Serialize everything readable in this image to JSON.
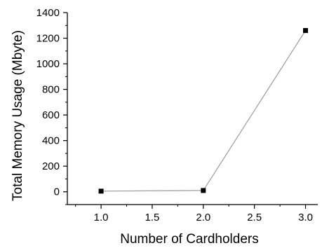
{
  "chart_data": {
    "type": "line",
    "title": "",
    "xlabel": "Number of Cardholders",
    "ylabel": "Total Memory Usage (Mbyte)",
    "xlim": [
      0.67,
      3.12
    ],
    "ylim": [
      -100,
      1400
    ],
    "xticks": [
      1.0,
      1.5,
      2.0,
      2.5,
      3.0
    ],
    "xtick_labels": [
      "1.0",
      "1.5",
      "2.0",
      "2.5",
      "3.0"
    ],
    "yticks": [
      0,
      200,
      400,
      600,
      800,
      1000,
      1200,
      1400
    ],
    "ytick_labels": [
      "0",
      "200",
      "400",
      "600",
      "800",
      "1000",
      "1200",
      "1400"
    ],
    "grid": false,
    "legend": "none",
    "series": [
      {
        "x": [
          1.0,
          2.0,
          3.0
        ],
        "values": [
          5,
          10,
          1260
        ],
        "line_color": "#9a9a9a",
        "marker": "square",
        "marker_color": "#000000"
      }
    ]
  }
}
